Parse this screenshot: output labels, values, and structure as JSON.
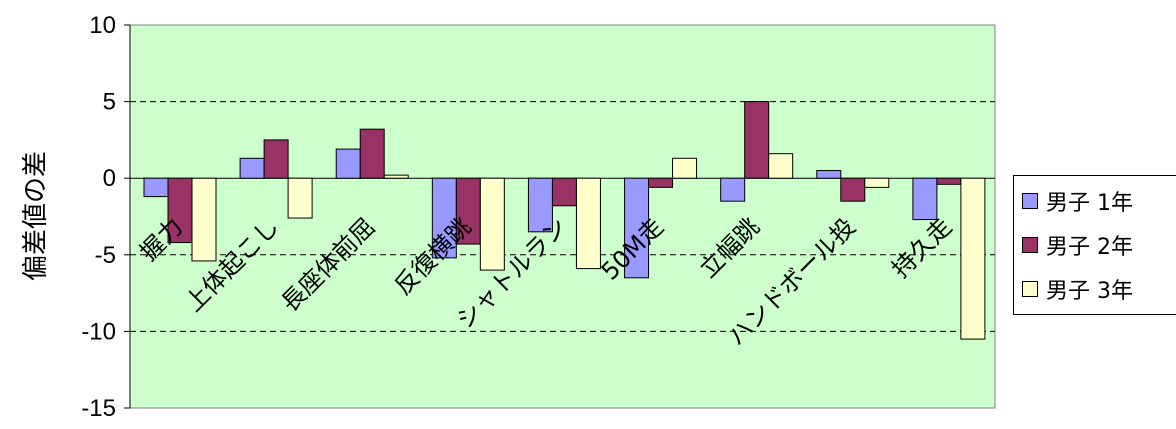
{
  "chart_data": {
    "type": "bar",
    "ylabel": "偏差値の差",
    "ylim": [
      -15,
      10
    ],
    "yticks": [
      10,
      5,
      0,
      -5,
      -10,
      -15
    ],
    "ytick_labels": [
      "10",
      "5",
      "0",
      "-5",
      "-10",
      "-15"
    ],
    "grid": "dashed horizontal",
    "legend": "right",
    "categories": [
      "握力",
      "上体起こし",
      "長座体前屈",
      "反復横跳",
      "シャトルラン",
      "50M走",
      "立幅跳",
      "ハンドボール投",
      "持久走"
    ],
    "series": [
      {
        "name": "男子 1年",
        "color": "#9999ff",
        "values": [
          -1.2,
          1.3,
          1.9,
          -5.2,
          -3.5,
          -6.5,
          -1.5,
          0.5,
          -2.7
        ]
      },
      {
        "name": "男子 2年",
        "color": "#993366",
        "values": [
          -4.2,
          2.5,
          3.2,
          -4.3,
          -1.8,
          -0.6,
          5.0,
          -1.5,
          -0.4
        ]
      },
      {
        "name": "男子 3年",
        "color": "#ffffcc",
        "values": [
          -5.4,
          -2.6,
          0.2,
          -6.0,
          -5.9,
          1.3,
          1.6,
          -0.6,
          -10.5
        ]
      }
    ],
    "plot_background": "#ccffcc"
  }
}
